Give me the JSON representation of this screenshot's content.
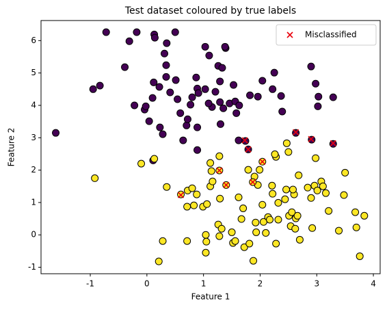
{
  "chart_data": {
    "type": "scatter",
    "title": "Test dataset coloured by true labels",
    "xlabel": "Feature 1",
    "ylabel": "Feature 2",
    "xlim": [
      -1.87,
      4.12
    ],
    "ylim": [
      -1.2,
      6.62
    ],
    "xticks": [
      -1,
      0,
      1,
      2,
      3,
      4
    ],
    "yticks": [
      -1,
      0,
      1,
      2,
      3,
      4,
      5,
      6
    ],
    "grid": false,
    "legend": "upper right",
    "series": [
      {
        "color": "#440154",
        "marker": "o",
        "x": [
          -1.61,
          -0.95,
          -0.83,
          -0.72,
          -0.31,
          -0.39,
          -0.18,
          -0.22,
          -0.04,
          -0.02,
          0.04,
          0.13,
          0.14,
          0.12,
          0.1,
          0.22,
          0.23,
          0.31,
          0.34,
          0.35,
          0.34,
          0.28,
          0.41,
          0.5,
          0.51,
          0.54,
          0.64,
          0.59,
          0.7,
          0.72,
          0.77,
          0.8,
          0.87,
          0.89,
          0.89,
          0.91,
          0.89,
          1.03,
          1.1,
          1.15,
          1.21,
          1.26,
          1.29,
          1.3,
          1.33,
          1.35,
          1.46,
          1.53,
          1.56,
          1.39,
          1.38,
          1.58,
          1.63,
          1.29,
          1.09,
          1.03,
          1.82,
          1.96,
          2.04,
          2.37,
          2.39,
          2.25,
          2.22,
          2.9,
          2.98,
          3.03,
          3.02,
          3.29,
          0.11,
          1.62,
          1.74,
          2.63,
          2.91,
          3.29,
          1.79
        ],
        "values": [
          3.15,
          4.5,
          4.61,
          6.26,
          5.98,
          5.18,
          6.26,
          4.0,
          3.87,
          3.97,
          3.51,
          6.19,
          6.09,
          4.71,
          4.23,
          4.57,
          3.32,
          5.6,
          5.24,
          5.92,
          4.88,
          3.11,
          4.4,
          6.26,
          4.78,
          4.19,
          2.92,
          3.76,
          3.38,
          3.57,
          4.02,
          4.25,
          4.86,
          4.52,
          2.62,
          4.38,
          3.32,
          5.81,
          5.54,
          3.95,
          4.42,
          5.22,
          4.74,
          3.42,
          5.16,
          3.91,
          4.06,
          4.63,
          4.12,
          5.77,
          5.81,
          3.76,
          4.0,
          4.1,
          4.06,
          4.5,
          4.31,
          4.27,
          4.76,
          4.29,
          3.81,
          5.01,
          4.5,
          5.2,
          4.67,
          4.27,
          3.97,
          4.25,
          2.3,
          2.92,
          2.9,
          3.15,
          2.94,
          2.81,
          2.64
        ]
      },
      {
        "color": "#fde725",
        "marker": "o",
        "x": [
          -0.92,
          -0.1,
          0.13,
          0.35,
          0.28,
          0.21,
          0.71,
          0.71,
          0.72,
          0.8,
          0.88,
          0.83,
          0.6,
          0.99,
          1.04,
          1.06,
          1.05,
          1.04,
          1.12,
          1.14,
          1.12,
          1.16,
          1.26,
          1.28,
          1.32,
          1.29,
          1.28,
          1.5,
          1.52,
          1.56,
          1.62,
          1.67,
          1.7,
          1.72,
          1.79,
          1.81,
          1.88,
          1.9,
          1.93,
          1.92,
          1.96,
          1.99,
          2.04,
          2.06,
          2.1,
          2.14,
          2.17,
          2.21,
          2.22,
          2.28,
          2.28,
          2.32,
          2.32,
          2.26,
          2.44,
          2.46,
          2.5,
          2.54,
          2.51,
          2.56,
          2.6,
          2.58,
          2.63,
          2.66,
          2.62,
          2.7,
          2.68,
          2.84,
          2.9,
          2.92,
          2.96,
          2.98,
          3.01,
          3.08,
          3.11,
          3.16,
          3.21,
          3.39,
          3.5,
          3.48,
          3.68,
          3.7,
          3.76,
          3.84,
          2.47,
          2.04,
          1.87,
          1.28,
          1.4
        ],
        "values": [
          1.75,
          2.2,
          2.35,
          1.48,
          -0.19,
          -0.82,
          -0.19,
          0.87,
          1.37,
          1.44,
          1.25,
          0.91,
          1.25,
          0.87,
          0.0,
          0.95,
          -0.21,
          -0.55,
          2.22,
          1.97,
          1.5,
          1.65,
          0.32,
          -0.04,
          0.19,
          1.12,
          2.43,
          0.08,
          -0.25,
          -0.19,
          1.16,
          0.49,
          0.82,
          -0.38,
          2.01,
          -0.27,
          -0.8,
          1.8,
          0.08,
          0.38,
          1.54,
          2.01,
          0.93,
          0.4,
          0.06,
          0.55,
          0.47,
          1.52,
          1.27,
          -0.27,
          2.41,
          0.47,
          0.99,
          2.49,
          1.1,
          1.4,
          2.56,
          0.27,
          0.59,
          0.7,
          1.25,
          1.4,
          0.51,
          0.59,
          0.19,
          -0.15,
          1.84,
          1.46,
          1.14,
          0.21,
          1.52,
          2.37,
          1.37,
          1.65,
          1.5,
          1.29,
          0.74,
          0.13,
          1.92,
          1.23,
          0.7,
          0.23,
          -0.66,
          0.59,
          2.83,
          2.26,
          1.63,
          1.99,
          1.54
        ]
      },
      {
        "name": "Misclassified",
        "color": "#e8000b",
        "marker": "x",
        "x": [
          2.63,
          2.9,
          3.29,
          1.73,
          1.79,
          1.28,
          2.04,
          1.4,
          1.87,
          0.6
        ],
        "values": [
          3.17,
          2.96,
          2.83,
          2.92,
          2.64,
          1.99,
          2.26,
          1.54,
          1.63,
          1.23
        ]
      }
    ]
  }
}
